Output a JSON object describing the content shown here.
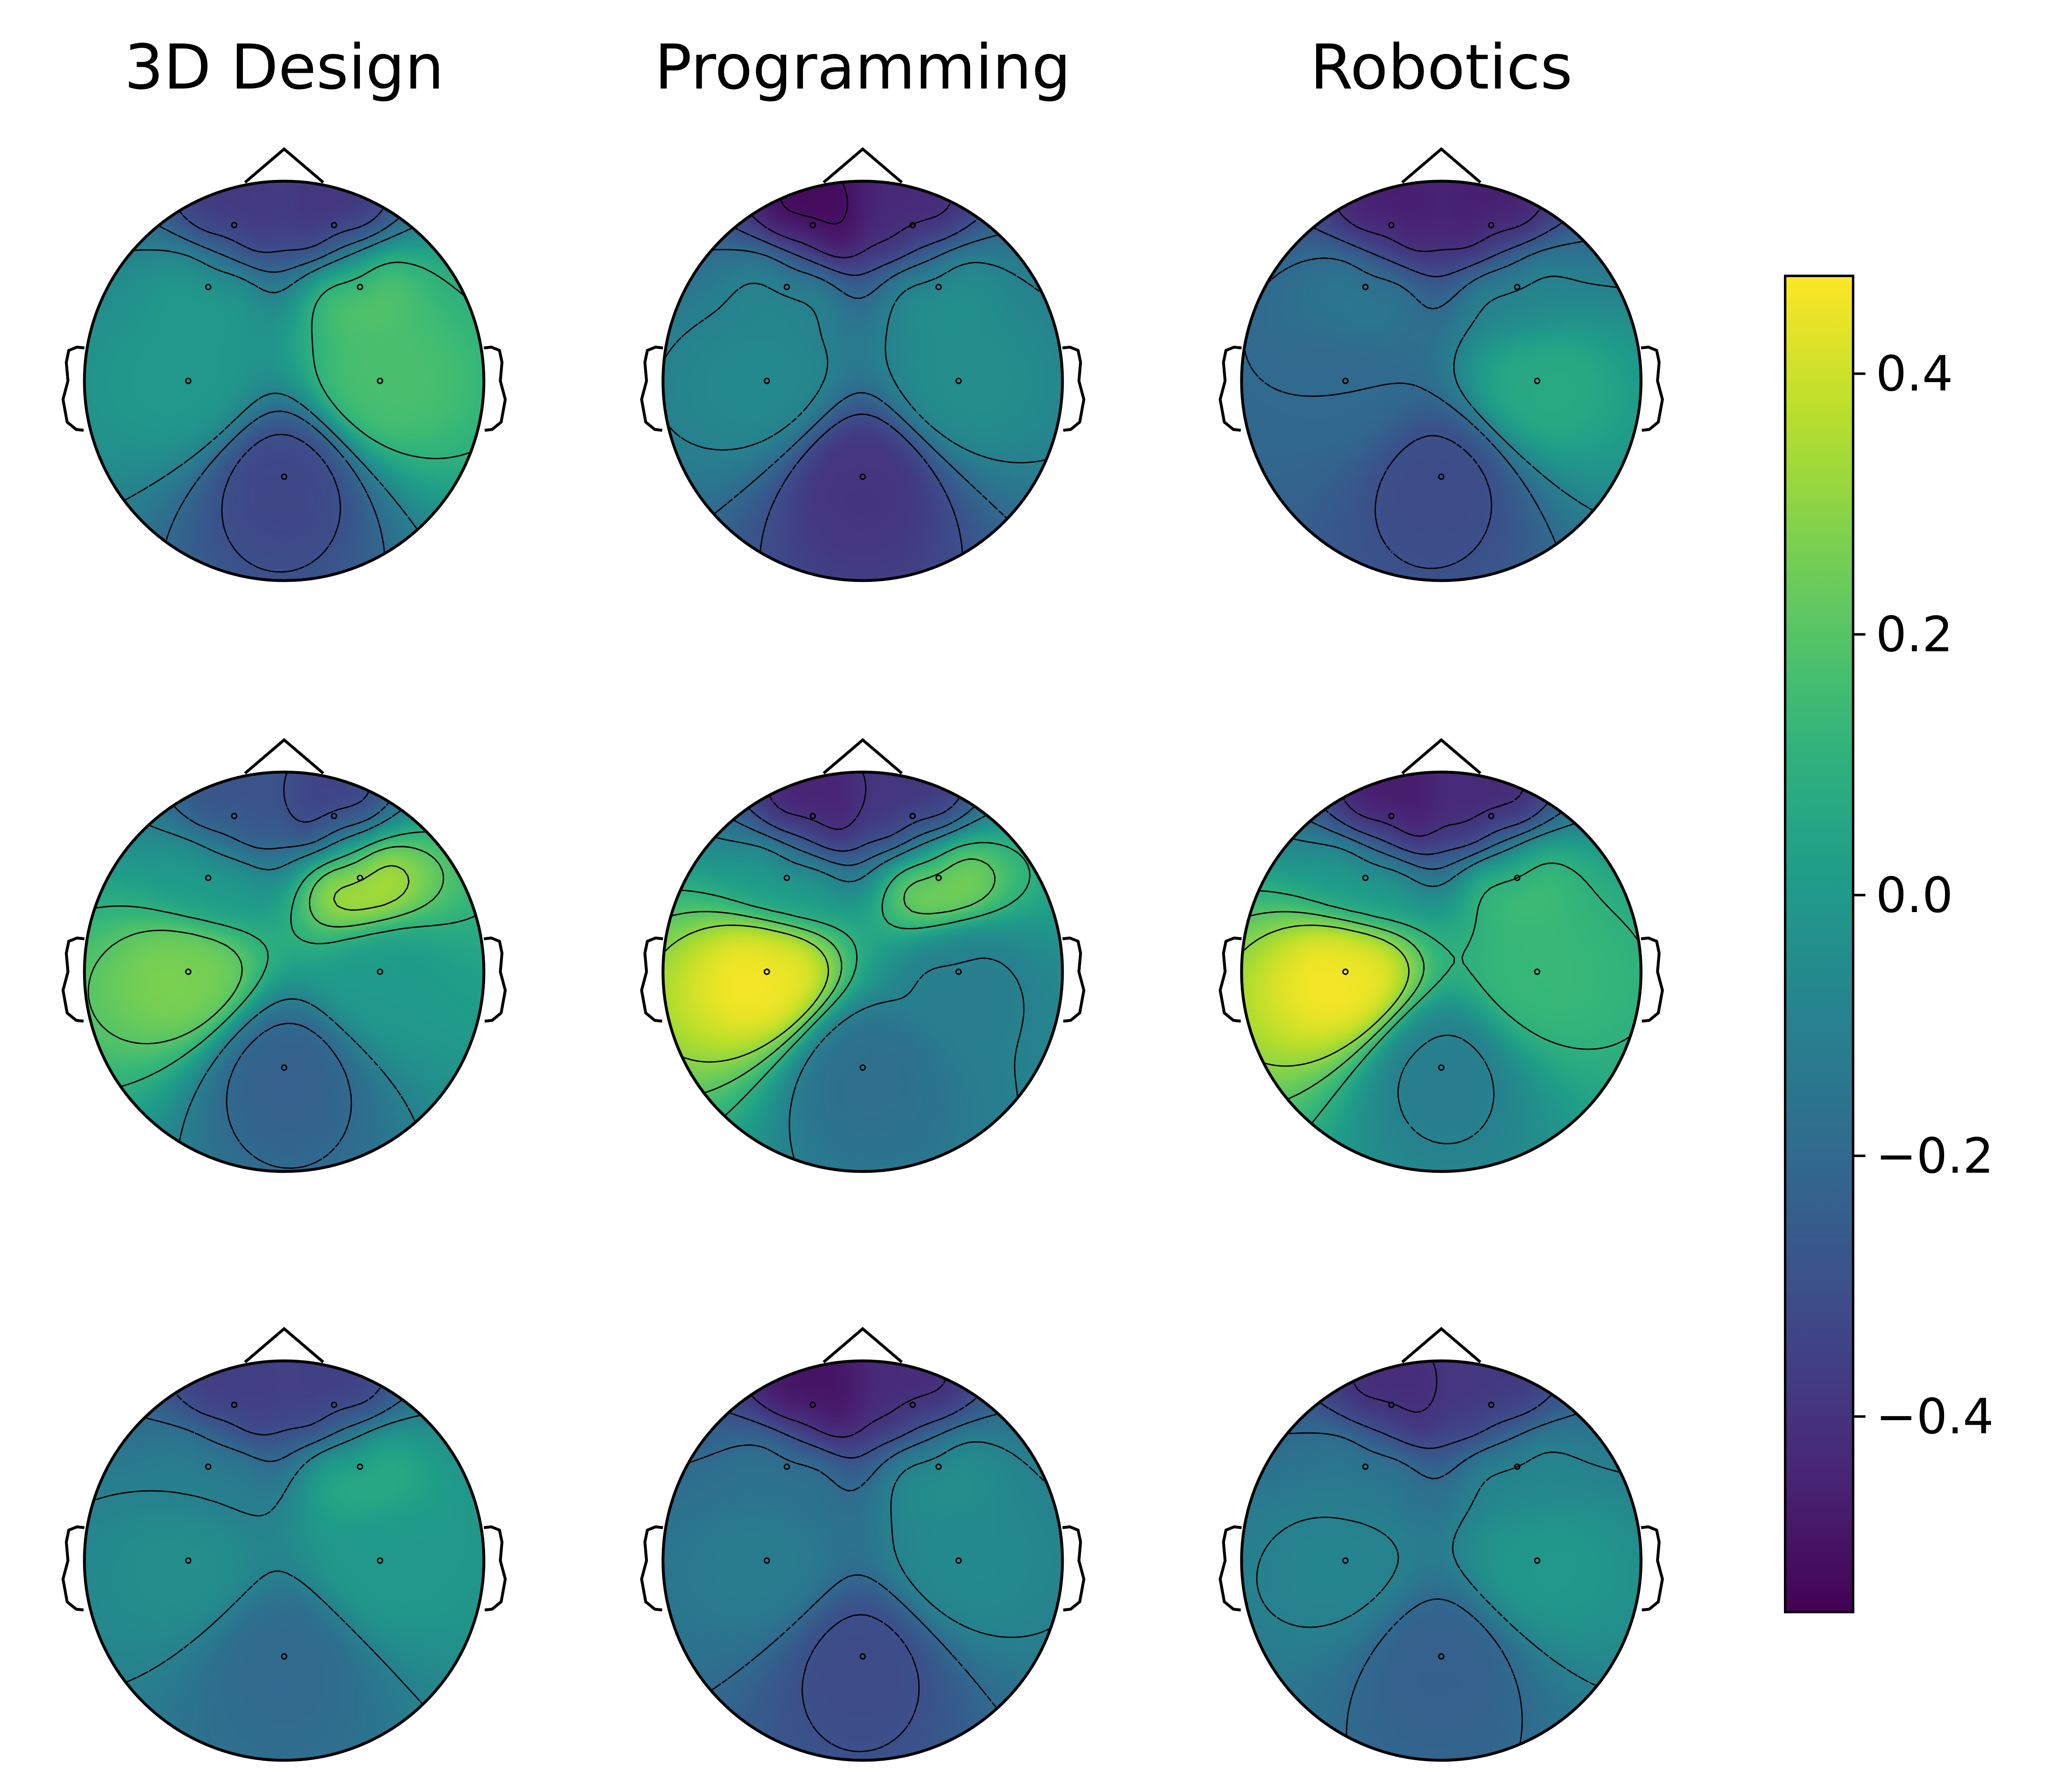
{
  "chart_data": {
    "type": "heatmap",
    "subtype": "scalp-topomap-grid",
    "column_titles": [
      "3D Design",
      "Programming",
      "Robotics"
    ],
    "rows": 3,
    "electrodes": [
      {
        "x": -0.25,
        "y": 0.78
      },
      {
        "x": 0.25,
        "y": 0.78
      },
      {
        "x": -0.38,
        "y": 0.47
      },
      {
        "x": 0.38,
        "y": 0.47
      },
      {
        "x": -0.48,
        "y": 0.0
      },
      {
        "x": 0.48,
        "y": 0.0
      },
      {
        "x": 0.0,
        "y": -0.48
      }
    ],
    "maps": [
      {
        "row": 0,
        "column": "3D Design",
        "electrode_values": [
          -0.4,
          -0.42,
          0.02,
          0.22,
          0.0,
          0.18,
          -0.34
        ]
      },
      {
        "row": 0,
        "column": "Programming",
        "electrode_values": [
          -0.55,
          -0.45,
          -0.06,
          -0.02,
          -0.06,
          -0.04,
          -0.4
        ]
      },
      {
        "row": 0,
        "column": "Robotics",
        "electrode_values": [
          -0.48,
          -0.48,
          -0.12,
          -0.06,
          -0.2,
          0.08,
          -0.32
        ]
      },
      {
        "row": 1,
        "column": "3D Design",
        "electrode_values": [
          -0.3,
          -0.38,
          0.02,
          0.4,
          0.28,
          0.0,
          -0.24
        ]
      },
      {
        "row": 1,
        "column": "Programming",
        "electrode_values": [
          -0.48,
          -0.42,
          0.02,
          0.32,
          0.48,
          -0.12,
          -0.18
        ]
      },
      {
        "row": 1,
        "column": "Robotics",
        "electrode_values": [
          -0.5,
          -0.46,
          0.02,
          0.18,
          0.48,
          0.14,
          -0.12
        ]
      },
      {
        "row": 2,
        "column": "3D Design",
        "electrode_values": [
          -0.38,
          -0.38,
          -0.1,
          0.1,
          -0.04,
          0.0,
          -0.2
        ]
      },
      {
        "row": 2,
        "column": "Programming",
        "electrode_values": [
          -0.52,
          -0.44,
          -0.14,
          -0.02,
          -0.12,
          -0.06,
          -0.32
        ]
      },
      {
        "row": 2,
        "column": "Robotics",
        "electrode_values": [
          -0.44,
          -0.4,
          -0.12,
          -0.06,
          -0.08,
          0.0,
          -0.24
        ]
      }
    ],
    "colorbar": {
      "colormap": "viridis",
      "vmin": -0.55,
      "vmax": 0.475,
      "ticks": [
        0.4,
        0.2,
        0.0,
        -0.2,
        -0.4
      ],
      "tick_labels": [
        "0.4",
        "0.2",
        "0.0",
        "−0.2",
        "−0.4"
      ]
    },
    "contours": {
      "positive_style": "solid",
      "negative_style": "dashed",
      "color": "#000000"
    },
    "grid": false,
    "legend": "colorbar-right"
  }
}
